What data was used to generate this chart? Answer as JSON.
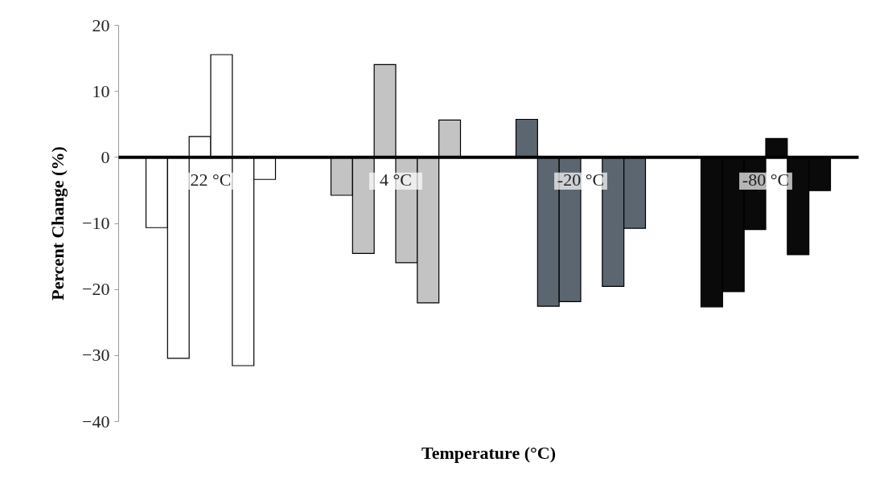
{
  "chart_data": {
    "type": "bar",
    "xlabel": "Temperature (°C)",
    "ylabel": "Percent Change (%)",
    "categories": [
      "22 °C",
      "4 °C",
      "-20 °C",
      "-80 °C"
    ],
    "series": [
      {
        "colors": [
          "#ffffff",
          "#c3c3c3",
          "#5b6670",
          "#0a0a0a"
        ],
        "values": [
          -10.7,
          -5.8,
          5.7,
          -22.7
        ]
      },
      {
        "colors": [
          "#ffffff",
          "#c3c3c3",
          "#5b6670",
          "#0a0a0a"
        ],
        "values": [
          -30.5,
          -14.6,
          -22.6,
          -20.4
        ]
      },
      {
        "colors": [
          "#ffffff",
          "#c3c3c3",
          "#5b6670",
          "#0a0a0a"
        ],
        "values": [
          3.1,
          14.0,
          -21.9,
          -11.0
        ]
      },
      {
        "colors": [
          "#ffffff",
          "#c3c3c3",
          "#5b6670",
          "#0a0a0a"
        ],
        "values": [
          15.5,
          -16.0,
          null,
          2.8
        ]
      },
      {
        "colors": [
          "#ffffff",
          "#c3c3c3",
          "#5b6670",
          "#0a0a0a"
        ],
        "values": [
          -31.6,
          -22.1,
          -19.6,
          -14.8
        ]
      },
      {
        "colors": [
          "#ffffff",
          "#c3c3c3",
          "#5b6670",
          "#0a0a0a"
        ],
        "values": [
          -3.4,
          5.6,
          -10.8,
          -5.1
        ]
      }
    ],
    "ylim": [
      -40,
      20
    ],
    "yticks": [
      -40,
      -30,
      -20,
      -10,
      0,
      10,
      20
    ],
    "grid": false
  }
}
